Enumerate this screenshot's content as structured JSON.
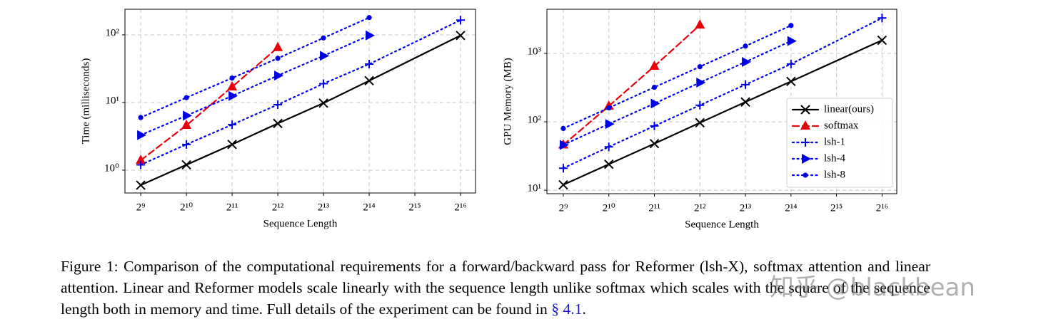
{
  "chart_data": [
    {
      "type": "line",
      "xlabel": "Sequence Length",
      "ylabel": "Time (milliseconds)",
      "xscale": "log",
      "yscale": "log",
      "grid": true,
      "xlim": [
        403,
        82250
      ],
      "ylim": [
        0.46,
        239
      ],
      "xticks": [
        {
          "value": 512,
          "label": "2⁹"
        },
        {
          "value": 1024,
          "label": "2¹⁰"
        },
        {
          "value": 2048,
          "label": "2¹¹"
        },
        {
          "value": 4096,
          "label": "2¹²"
        },
        {
          "value": 8192,
          "label": "2¹³"
        },
        {
          "value": 16384,
          "label": "2¹⁴"
        },
        {
          "value": 32768,
          "label": "2¹⁵"
        },
        {
          "value": 65536,
          "label": "2¹⁶"
        }
      ],
      "yticks": [
        {
          "value": 1,
          "label": "10⁰"
        },
        {
          "value": 10,
          "label": "10¹"
        },
        {
          "value": 100,
          "label": "10²"
        }
      ],
      "series": [
        {
          "name": "linear(ours)",
          "color": "#000000",
          "marker": "x",
          "linestyle": "solid",
          "x": [
            512,
            1024,
            2048,
            4096,
            8192,
            16384,
            65536
          ],
          "values": [
            0.6,
            1.2,
            2.4,
            4.9,
            9.8,
            21,
            98
          ]
        },
        {
          "name": "softmax",
          "color": "#e8000b",
          "marker": "^",
          "linestyle": "dashed",
          "x": [
            512,
            1024,
            2048,
            4096
          ],
          "values": [
            1.4,
            4.6,
            17,
            65
          ]
        },
        {
          "name": "lsh-1",
          "color": "#0000e6",
          "marker": "+",
          "linestyle": "dotted",
          "x": [
            512,
            1024,
            2048,
            4096,
            8192,
            16384,
            65536
          ],
          "values": [
            1.2,
            2.4,
            4.7,
            9.3,
            19,
            37,
            165
          ]
        },
        {
          "name": "lsh-4",
          "color": "#0000e6",
          "marker": ">",
          "linestyle": "dotted",
          "x": [
            512,
            1024,
            2048,
            4096,
            8192,
            16384
          ],
          "values": [
            3.3,
            6.4,
            12.5,
            25,
            49,
            98
          ]
        },
        {
          "name": "lsh-8",
          "color": "#0000e6",
          "marker": "o",
          "linestyle": "dotted",
          "x": [
            512,
            1024,
            2048,
            4096,
            8192,
            16384
          ],
          "values": [
            6,
            11.8,
            23,
            45,
            90,
            180
          ]
        }
      ]
    },
    {
      "type": "line",
      "xlabel": "Sequence Length",
      "ylabel": "GPU Memory (MB)",
      "xscale": "log",
      "yscale": "log",
      "grid": true,
      "legend": "lower right",
      "xlim": [
        399,
        82000
      ],
      "ylim": [
        8.9,
        4425
      ],
      "xticks": [
        {
          "value": 512,
          "label": "2⁹"
        },
        {
          "value": 1024,
          "label": "2¹⁰"
        },
        {
          "value": 2048,
          "label": "2¹¹"
        },
        {
          "value": 4096,
          "label": "2¹²"
        },
        {
          "value": 8192,
          "label": "2¹³"
        },
        {
          "value": 16384,
          "label": "2¹⁴"
        },
        {
          "value": 32768,
          "label": "2¹⁵"
        },
        {
          "value": 65536,
          "label": "2¹⁶"
        }
      ],
      "yticks": [
        {
          "value": 10,
          "label": "10¹"
        },
        {
          "value": 100,
          "label": "10²"
        },
        {
          "value": 1000,
          "label": "10³"
        }
      ],
      "series": [
        {
          "name": "linear(ours)",
          "color": "#000000",
          "marker": "x",
          "linestyle": "solid",
          "x": [
            512,
            1024,
            2048,
            4096,
            8192,
            16384,
            65536
          ],
          "values": [
            12,
            24,
            48,
            97,
            195,
            390,
            1560
          ]
        },
        {
          "name": "softmax",
          "color": "#e8000b",
          "marker": "^",
          "linestyle": "dashed",
          "x": [
            512,
            1024,
            2048,
            4096
          ],
          "values": [
            46,
            170,
            650,
            2600
          ]
        },
        {
          "name": "lsh-1",
          "color": "#0000e6",
          "marker": "+",
          "linestyle": "dotted",
          "x": [
            512,
            1024,
            2048,
            4096,
            8192,
            16384,
            65536
          ],
          "values": [
            21,
            43,
            87,
            175,
            350,
            700,
            3300
          ]
        },
        {
          "name": "lsh-4",
          "color": "#0000e6",
          "marker": ">",
          "linestyle": "dotted",
          "x": [
            512,
            1024,
            2048,
            4096,
            8192,
            16384
          ],
          "values": [
            46,
            93,
            185,
            375,
            750,
            1520
          ]
        },
        {
          "name": "lsh-8",
          "color": "#0000e6",
          "marker": "o",
          "linestyle": "dotted",
          "x": [
            512,
            1024,
            2048,
            4096,
            8192,
            16384
          ],
          "values": [
            80,
            160,
            320,
            640,
            1280,
            2560
          ]
        }
      ]
    }
  ],
  "caption": {
    "text": "Figure 1: Comparison of the computational requirements for a forward/backward pass for Reformer (lsh-X), softmax attention and linear attention. Linear and Reformer models scale linearly with the sequence length unlike softmax which scales with the square of the sequence length both in memory and time. Full details of the experiment can be found in ",
    "link": "§ 4.1",
    "end": "."
  },
  "watermark": "知乎 @blackbean"
}
